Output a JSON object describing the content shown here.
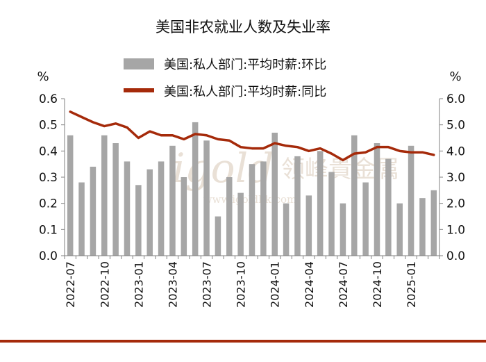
{
  "chart_data": {
    "type": "bar+line",
    "title": "美国非农就业人数及失业率",
    "left_unit": "%",
    "right_unit": "%",
    "left_axis": {
      "min": 0.0,
      "max": 0.6,
      "ticks": [
        "0.0",
        "0.1",
        "0.2",
        "0.3",
        "0.4",
        "0.5",
        "0.6"
      ]
    },
    "right_axis": {
      "min": 0.0,
      "max": 6.0,
      "ticks": [
        "0.0",
        "1.0",
        "2.0",
        "3.0",
        "4.0",
        "5.0",
        "6.0"
      ]
    },
    "x": [
      "2022-07",
      "2022-08",
      "2022-09",
      "2022-10",
      "2022-11",
      "2022-12",
      "2023-01",
      "2023-02",
      "2023-03",
      "2023-04",
      "2023-05",
      "2023-06",
      "2023-07",
      "2023-08",
      "2023-09",
      "2023-10",
      "2023-11",
      "2023-12",
      "2024-01",
      "2024-02",
      "2024-03",
      "2024-04",
      "2024-05",
      "2024-06",
      "2024-07",
      "2024-08",
      "2024-09",
      "2024-10",
      "2024-11",
      "2024-12",
      "2025-01",
      "2025-02",
      "2025-03"
    ],
    "x_tick_labels": [
      "2022-07",
      "2022-10",
      "2023-01",
      "2023-04",
      "2023-07",
      "2023-10",
      "2024-01",
      "2024-04",
      "2024-07",
      "2024-10",
      "2025-01"
    ],
    "series": [
      {
        "name": "美国:私人部门:平均时薪:环比",
        "type": "bar",
        "axis": "left",
        "color": "#a6a6a6",
        "values": [
          0.46,
          0.28,
          0.34,
          0.46,
          0.43,
          0.36,
          0.27,
          0.33,
          0.36,
          0.42,
          0.3,
          0.51,
          0.44,
          0.15,
          0.3,
          0.24,
          0.35,
          0.36,
          0.47,
          0.2,
          0.38,
          0.23,
          0.4,
          0.32,
          0.2,
          0.46,
          0.28,
          0.43,
          0.37,
          0.2,
          0.42,
          0.22,
          0.25
        ]
      },
      {
        "name": "美国:私人部门:平均时薪:同比",
        "type": "line",
        "axis": "right",
        "color": "#a52a0a",
        "values": [
          5.5,
          5.3,
          5.1,
          4.95,
          5.05,
          4.9,
          4.5,
          4.75,
          4.6,
          4.6,
          4.45,
          4.65,
          4.6,
          4.45,
          4.4,
          4.15,
          4.1,
          4.1,
          4.3,
          4.2,
          4.15,
          4.0,
          4.1,
          3.9,
          3.65,
          3.9,
          3.95,
          4.15,
          4.15,
          4.0,
          3.95,
          3.95,
          3.85
        ]
      }
    ],
    "grid": false,
    "legend": "top-center"
  },
  "watermark": {
    "latin": "igold",
    "cjk": "领峰貴金属",
    "url": "www.igoldhk.com"
  },
  "colors": {
    "footer_bar": "#a52a0a"
  }
}
